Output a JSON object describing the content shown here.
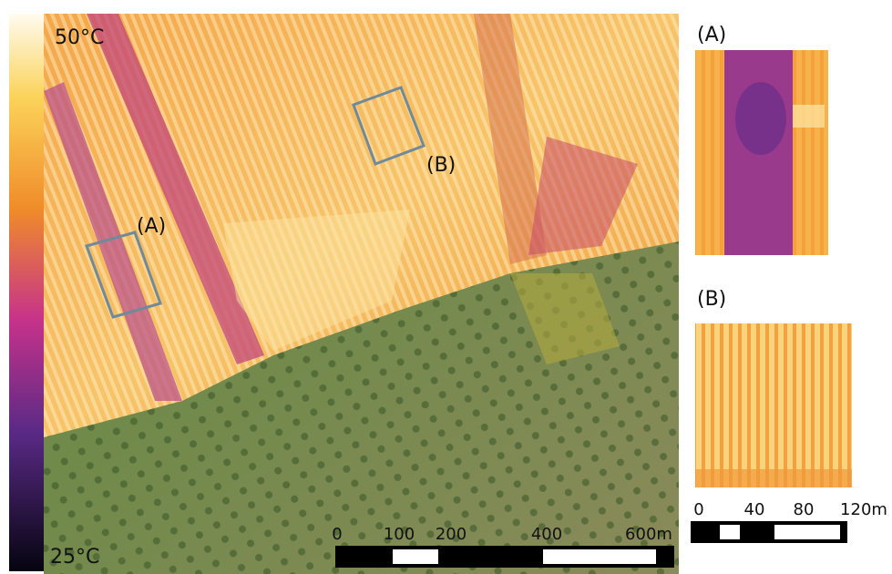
{
  "colorbar": {
    "max_label": "50°C",
    "min_label": "25°C"
  },
  "map": {
    "labels": [
      "(A)",
      "(B)"
    ],
    "scale_bar": {
      "labels": [
        "0",
        "100",
        "200",
        "400",
        "600m"
      ]
    }
  },
  "insets": [
    {
      "title": "(A)"
    },
    {
      "title": "(B)"
    }
  ],
  "inset_scale_bar": {
    "labels": [
      "0",
      "40",
      "80",
      "120m"
    ]
  }
}
